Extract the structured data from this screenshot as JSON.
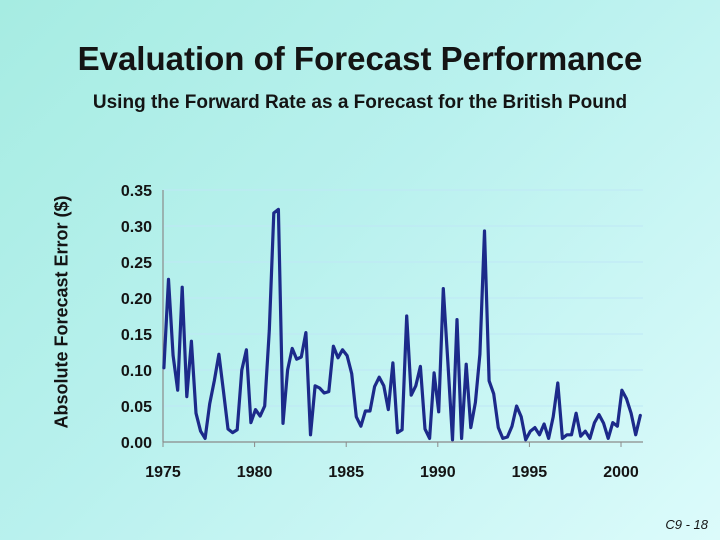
{
  "slide": {
    "title": "Evaluation of Forecast Performance",
    "subtitle": "Using the Forward Rate as a Forecast for the British Pound",
    "footer": "C9 - 18"
  },
  "colors": {
    "line": "#1c2a8a",
    "grid": "#bfe7f6",
    "axis": "#8a8a8a"
  },
  "chart_data": {
    "type": "line",
    "title": "Evaluation of Forecast Performance",
    "subtitle": "Using the Forward Rate as a Forecast for the British Pound",
    "xlabel": "",
    "ylabel": "Absolute Forecast Error ($)",
    "xlim": [
      1975,
      2001.2
    ],
    "ylim": [
      0,
      0.35
    ],
    "yticks": [
      0.0,
      0.05,
      0.1,
      0.15,
      0.2,
      0.25,
      0.3,
      0.35
    ],
    "ytick_labels": [
      "0.00",
      "0.05",
      "0.10",
      "0.15",
      "0.20",
      "0.25",
      "0.30",
      "0.35"
    ],
    "xticks": [
      1975,
      1980,
      1985,
      1990,
      1995,
      2000
    ],
    "xtick_labels": [
      "1975",
      "1980",
      "1985",
      "1990",
      "1995",
      "2000"
    ],
    "grid": true,
    "series": [
      {
        "name": "",
        "points": [
          [
            1975.05,
            0.103
          ],
          [
            1975.3,
            0.226
          ],
          [
            1975.55,
            0.12
          ],
          [
            1975.8,
            0.072
          ],
          [
            1976.05,
            0.215
          ],
          [
            1976.3,
            0.063
          ],
          [
            1976.55,
            0.14
          ],
          [
            1976.8,
            0.04
          ],
          [
            1977.05,
            0.015
          ],
          [
            1977.3,
            0.005
          ],
          [
            1977.55,
            0.053
          ],
          [
            1977.8,
            0.085
          ],
          [
            1978.05,
            0.122
          ],
          [
            1978.3,
            0.07
          ],
          [
            1978.55,
            0.018
          ],
          [
            1978.8,
            0.013
          ],
          [
            1979.05,
            0.017
          ],
          [
            1979.3,
            0.1
          ],
          [
            1979.55,
            0.128
          ],
          [
            1979.8,
            0.027
          ],
          [
            1980.05,
            0.045
          ],
          [
            1980.3,
            0.036
          ],
          [
            1980.55,
            0.05
          ],
          [
            1980.8,
            0.155
          ],
          [
            1981.05,
            0.318
          ],
          [
            1981.3,
            0.323
          ],
          [
            1981.55,
            0.026
          ],
          [
            1981.8,
            0.1
          ],
          [
            1982.05,
            0.13
          ],
          [
            1982.3,
            0.115
          ],
          [
            1982.55,
            0.118
          ],
          [
            1982.8,
            0.152
          ],
          [
            1983.05,
            0.01
          ],
          [
            1983.3,
            0.078
          ],
          [
            1983.55,
            0.075
          ],
          [
            1983.8,
            0.068
          ],
          [
            1984.05,
            0.07
          ],
          [
            1984.3,
            0.133
          ],
          [
            1984.55,
            0.117
          ],
          [
            1984.8,
            0.128
          ],
          [
            1985.05,
            0.12
          ],
          [
            1985.3,
            0.095
          ],
          [
            1985.55,
            0.035
          ],
          [
            1985.8,
            0.022
          ],
          [
            1986.05,
            0.043
          ],
          [
            1986.3,
            0.043
          ],
          [
            1986.55,
            0.077
          ],
          [
            1986.8,
            0.09
          ],
          [
            1987.05,
            0.078
          ],
          [
            1987.3,
            0.045
          ],
          [
            1987.55,
            0.11
          ],
          [
            1987.8,
            0.013
          ],
          [
            1988.05,
            0.017
          ],
          [
            1988.3,
            0.175
          ],
          [
            1988.55,
            0.065
          ],
          [
            1988.8,
            0.078
          ],
          [
            1989.05,
            0.105
          ],
          [
            1989.3,
            0.018
          ],
          [
            1989.55,
            0.005
          ],
          [
            1989.8,
            0.096
          ],
          [
            1990.05,
            0.042
          ],
          [
            1990.3,
            0.213
          ],
          [
            1990.55,
            0.11
          ],
          [
            1990.8,
            0.003
          ],
          [
            1991.05,
            0.17
          ],
          [
            1991.3,
            0.005
          ],
          [
            1991.55,
            0.108
          ],
          [
            1991.8,
            0.02
          ],
          [
            1992.05,
            0.055
          ],
          [
            1992.3,
            0.122
          ],
          [
            1992.55,
            0.293
          ],
          [
            1992.8,
            0.085
          ],
          [
            1993.05,
            0.067
          ],
          [
            1993.3,
            0.02
          ],
          [
            1993.55,
            0.005
          ],
          [
            1993.8,
            0.007
          ],
          [
            1994.05,
            0.022
          ],
          [
            1994.3,
            0.05
          ],
          [
            1994.55,
            0.035
          ],
          [
            1994.8,
            0.003
          ],
          [
            1995.05,
            0.015
          ],
          [
            1995.3,
            0.02
          ],
          [
            1995.55,
            0.01
          ],
          [
            1995.8,
            0.025
          ],
          [
            1996.05,
            0.005
          ],
          [
            1996.3,
            0.035
          ],
          [
            1996.55,
            0.082
          ],
          [
            1996.8,
            0.005
          ],
          [
            1997.05,
            0.01
          ],
          [
            1997.3,
            0.01
          ],
          [
            1997.55,
            0.04
          ],
          [
            1997.8,
            0.008
          ],
          [
            1998.05,
            0.015
          ],
          [
            1998.3,
            0.005
          ],
          [
            1998.55,
            0.027
          ],
          [
            1998.8,
            0.038
          ],
          [
            1999.05,
            0.026
          ],
          [
            1999.3,
            0.005
          ],
          [
            1999.55,
            0.027
          ],
          [
            1999.8,
            0.022
          ],
          [
            2000.05,
            0.072
          ],
          [
            2000.3,
            0.06
          ],
          [
            2000.55,
            0.04
          ],
          [
            2000.8,
            0.01
          ],
          [
            2001.05,
            0.037
          ]
        ]
      }
    ]
  }
}
